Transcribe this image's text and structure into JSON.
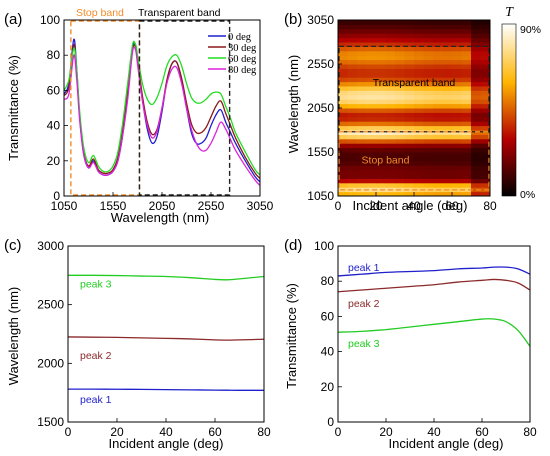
{
  "chart_data": [
    {
      "panel": "(a)",
      "type": "line",
      "xlabel": "Wavelength (nm)",
      "ylabel": "Transmittance (%)",
      "xlim": [
        1050,
        3050
      ],
      "ylim": [
        0,
        100
      ],
      "xticks": [
        1050,
        1550,
        2050,
        2550,
        3050
      ],
      "yticks": [
        0,
        20,
        40,
        60,
        80,
        100
      ],
      "grid": false,
      "legend": {
        "placement": "top-right"
      },
      "bands": [
        {
          "label": "Stop band",
          "range": [
            1120,
            1820
          ],
          "color": "#f08c2a"
        },
        {
          "label": "Transparent band",
          "range": [
            1820,
            2740
          ],
          "color": "#222222"
        }
      ],
      "x": [
        1050,
        1100,
        1150,
        1180,
        1210,
        1250,
        1300,
        1350,
        1400,
        1450,
        1500,
        1550,
        1600,
        1650,
        1700,
        1750,
        1780,
        1800,
        1850,
        1900,
        1950,
        2000,
        2050,
        2100,
        2150,
        2200,
        2250,
        2300,
        2350,
        2400,
        2450,
        2500,
        2550,
        2600,
        2650,
        2700,
        2750,
        2800,
        2900,
        3000,
        3050
      ],
      "series": [
        {
          "name": "0 deg",
          "color": "#1f1fcc",
          "values": [
            58,
            64,
            89,
            72,
            45,
            24,
            16,
            20,
            14,
            12,
            12,
            14,
            20,
            35,
            58,
            84,
            86,
            78,
            55,
            38,
            30,
            34,
            48,
            65,
            75,
            76,
            66,
            50,
            36,
            30,
            30,
            33,
            40,
            46,
            49,
            42,
            36,
            30,
            20,
            11,
            8
          ]
        },
        {
          "name": "30 deg",
          "color": "#8b1a1a",
          "values": [
            57,
            62,
            86,
            70,
            45,
            25,
            17,
            21,
            15,
            13,
            13,
            15,
            22,
            38,
            60,
            83,
            85,
            78,
            57,
            42,
            35,
            38,
            50,
            66,
            75,
            76,
            67,
            53,
            41,
            36,
            36,
            39,
            45,
            51,
            54,
            47,
            40,
            33,
            22,
            13,
            10
          ]
        },
        {
          "name": "60 deg",
          "color": "#22dd22",
          "values": [
            60,
            66,
            84,
            72,
            48,
            28,
            19,
            23,
            17,
            14,
            14,
            17,
            25,
            42,
            64,
            86,
            86,
            80,
            64,
            55,
            52,
            56,
            64,
            74,
            79,
            80,
            74,
            64,
            56,
            53,
            53,
            55,
            58,
            59,
            58,
            51,
            44,
            36,
            25,
            15,
            12
          ]
        },
        {
          "name": "80 deg",
          "color": "#dd22dd",
          "values": [
            55,
            58,
            80,
            66,
            43,
            24,
            16,
            19,
            14,
            12,
            12,
            14,
            20,
            35,
            55,
            82,
            83,
            75,
            54,
            40,
            33,
            37,
            50,
            64,
            72,
            73,
            64,
            50,
            38,
            30,
            26,
            26,
            30,
            36,
            42,
            38,
            32,
            26,
            17,
            9,
            6
          ]
        }
      ]
    },
    {
      "panel": "(b)",
      "type": "heatmap",
      "xlabel": "Incident angle (deg)",
      "ylabel": "Wavelength (nm)",
      "xlim": [
        0,
        80
      ],
      "ylim": [
        1050,
        3050
      ],
      "xticks": [
        0,
        20,
        40,
        60,
        80
      ],
      "yticks": [
        1050,
        1550,
        2050,
        2550,
        3050
      ],
      "colorbar": {
        "label": "T",
        "top_label": "90%",
        "bottom_label": "0%"
      },
      "annotations": [
        {
          "text": "Transparent band",
          "x": 40,
          "y": 2300,
          "color": "#000000"
        },
        {
          "text": "Stop band",
          "x": 25,
          "y": 1420,
          "color": "#f08c2a"
        }
      ],
      "band_boxes": [
        {
          "range": [
            1780,
            2750
          ],
          "color": "#222222"
        },
        {
          "range": [
            1120,
            1780
          ],
          "color": "#f08c2a"
        }
      ],
      "grid_wavelength": [
        1050,
        1100,
        1150,
        1200,
        1250,
        1300,
        1350,
        1400,
        1450,
        1500,
        1550,
        1600,
        1650,
        1700,
        1750,
        1800,
        1850,
        1900,
        1950,
        2000,
        2050,
        2100,
        2150,
        2200,
        2250,
        2300,
        2350,
        2400,
        2450,
        2500,
        2550,
        2600,
        2650,
        2700,
        2750,
        2800,
        2850,
        2900,
        2950,
        3000,
        3050
      ],
      "transmittance_profile": [
        0.55,
        0.62,
        0.85,
        0.4,
        0.2,
        0.18,
        0.2,
        0.15,
        0.12,
        0.12,
        0.13,
        0.18,
        0.3,
        0.55,
        0.82,
        0.78,
        0.55,
        0.38,
        0.32,
        0.35,
        0.5,
        0.66,
        0.75,
        0.76,
        0.7,
        0.58,
        0.45,
        0.37,
        0.35,
        0.37,
        0.43,
        0.5,
        0.53,
        0.48,
        0.4,
        0.32,
        0.26,
        0.2,
        0.15,
        0.11,
        0.08
      ]
    },
    {
      "panel": "(c)",
      "type": "line",
      "xlabel": "Incident angle (deg)",
      "ylabel": "Wavelength (nm)",
      "xlim": [
        0,
        80
      ],
      "ylim": [
        1500,
        3000
      ],
      "xticks": [
        0,
        20,
        40,
        60,
        80
      ],
      "yticks": [
        1500,
        2000,
        2500,
        3000
      ],
      "grid": false,
      "x": [
        0,
        10,
        20,
        30,
        40,
        50,
        60,
        65,
        70,
        80
      ],
      "series": [
        {
          "name": "peak 3",
          "color": "#22cc22",
          "values": [
            2750,
            2750,
            2748,
            2744,
            2740,
            2730,
            2715,
            2712,
            2720,
            2740
          ]
        },
        {
          "name": "peak 2",
          "color": "#8b2a2a",
          "values": [
            2225,
            2223,
            2221,
            2217,
            2213,
            2208,
            2200,
            2198,
            2200,
            2205
          ]
        },
        {
          "name": "peak 1",
          "color": "#1f1fcc",
          "values": [
            1780,
            1780,
            1779,
            1778,
            1776,
            1774,
            1772,
            1771,
            1770,
            1770
          ]
        }
      ]
    },
    {
      "panel": "(d)",
      "type": "line",
      "xlabel": "Incident angle (deg)",
      "ylabel": "Transmittance (%)",
      "xlim": [
        0,
        80
      ],
      "ylim": [
        0,
        100
      ],
      "xticks": [
        0,
        20,
        40,
        60,
        80
      ],
      "yticks": [
        0,
        20,
        40,
        60,
        80,
        100
      ],
      "grid": false,
      "x": [
        0,
        10,
        20,
        30,
        40,
        50,
        60,
        65,
        70,
        75,
        80
      ],
      "series": [
        {
          "name": "peak 1",
          "color": "#1f1fcc",
          "values": [
            83,
            84,
            85,
            85.5,
            86,
            87,
            87.5,
            88,
            88,
            87,
            84
          ]
        },
        {
          "name": "peak 2",
          "color": "#8b2a2a",
          "values": [
            74,
            75,
            76,
            77,
            78,
            79.5,
            80.5,
            81,
            80.5,
            79,
            75
          ]
        },
        {
          "name": "peak 3",
          "color": "#22cc22",
          "values": [
            51,
            51.5,
            52.5,
            54,
            55.5,
            57,
            58.5,
            58.5,
            57,
            52,
            43
          ]
        }
      ]
    }
  ]
}
